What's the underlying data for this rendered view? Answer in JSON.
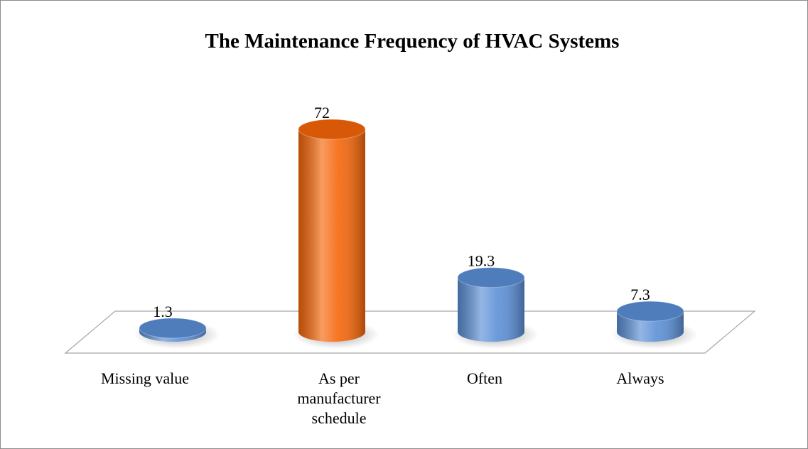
{
  "chart_data": {
    "type": "bar3d",
    "title": "The Maintenance Frequency of HVAC Systems",
    "categories": [
      "Missing value",
      "As per manufacturer schedule",
      "Often",
      "Always"
    ],
    "values": [
      1.3,
      72,
      19.3,
      7.3
    ],
    "colors": [
      "#5b8fd6",
      "#f5660a",
      "#5b8fd6",
      "#5b8fd6"
    ]
  }
}
